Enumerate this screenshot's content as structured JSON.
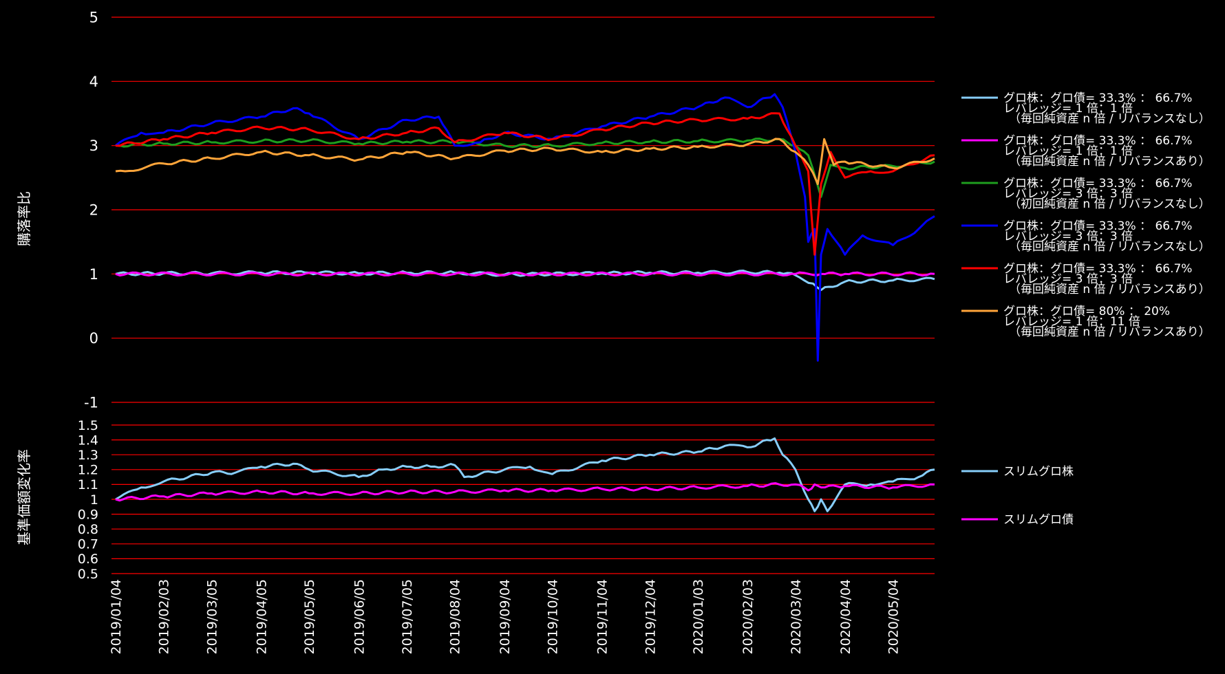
{
  "chart_data": [
    {
      "type": "line",
      "ylabel": "購落率比",
      "ylim": [
        -1,
        5
      ],
      "yticks": [
        5,
        4,
        3,
        2,
        1,
        0,
        -1
      ],
      "grid": "horizontal",
      "grid_color": "#ff0000",
      "legend_position": "right",
      "series": [
        {
          "legend": [
            "グロ株：グロ債= 33.3% ： 66.7%",
            "レバレッジ= 1 倍：1 倍",
            "（毎回純資産 n 倍 / リバランスなし）"
          ],
          "color": "#87cefa",
          "x": [
            "2019/01/04",
            "2019/02/03",
            "2019/03/05",
            "2019/04/05",
            "2019/05/05",
            "2019/06/05",
            "2019/07/05",
            "2019/08/04",
            "2019/09/04",
            "2019/10/04",
            "2019/11/04",
            "2019/12/04",
            "2020/01/03",
            "2020/02/03",
            "2020/02/23",
            "2020/03/04",
            "2020/03/15",
            "2020/03/20",
            "2020/04/04",
            "2020/05/04",
            "2020/05/30"
          ],
          "values": [
            1.0,
            1.01,
            1.01,
            1.02,
            1.02,
            1.01,
            1.02,
            1.02,
            0.99,
            1.0,
            1.01,
            1.02,
            1.02,
            1.03,
            1.02,
            0.98,
            0.85,
            0.75,
            0.88,
            0.9,
            0.92
          ]
        },
        {
          "legend": [
            "グロ株：グロ債= 33.3% ： 66.7%",
            "レバレッジ= 1 倍：1 倍",
            "（毎回純資産 n 倍 / リバランスあり）"
          ],
          "color": "#ff00ff",
          "x": [
            "2019/01/04",
            "2019/08/04",
            "2020/03/04",
            "2020/03/20",
            "2020/04/04",
            "2020/05/30"
          ],
          "values": [
            1.0,
            1.0,
            1.0,
            1.0,
            1.0,
            1.0
          ]
        },
        {
          "legend": [
            "グロ株：グロ債= 33.3% ： 66.7%",
            "レバレッジ= 3 倍：3 倍",
            "（初回純資産 n 倍 / リバランスなし）"
          ],
          "color": "#1e9e1e",
          "x": [
            "2019/01/04",
            "2019/02/03",
            "2019/03/05",
            "2019/04/05",
            "2019/05/05",
            "2019/06/05",
            "2019/07/05",
            "2019/08/04",
            "2019/09/04",
            "2019/10/04",
            "2019/11/04",
            "2019/12/04",
            "2020/01/03",
            "2020/02/03",
            "2020/02/23",
            "2020/03/04",
            "2020/03/12",
            "2020/03/20",
            "2020/03/26",
            "2020/04/04",
            "2020/05/04",
            "2020/05/30"
          ],
          "values": [
            3.0,
            3.03,
            3.05,
            3.07,
            3.08,
            3.03,
            3.06,
            3.06,
            3.0,
            3.0,
            3.04,
            3.06,
            3.07,
            3.08,
            3.1,
            3.0,
            2.85,
            2.2,
            2.7,
            2.65,
            2.68,
            2.75
          ]
        },
        {
          "legend": [
            "グロ株：グロ債= 33.3% ： 66.7%",
            "レバレッジ= 3 倍：3 倍",
            "（毎回純資産 n 倍 / リバランスなし）"
          ],
          "color": "#0000ff",
          "x": [
            "2019/01/04",
            "2019/01/20",
            "2019/02/03",
            "2019/03/05",
            "2019/04/05",
            "2019/04/25",
            "2019/05/05",
            "2019/06/05",
            "2019/07/05",
            "2019/07/25",
            "2019/08/04",
            "2019/08/20",
            "2019/09/04",
            "2019/10/04",
            "2019/11/04",
            "2019/12/04",
            "2020/01/03",
            "2020/01/20",
            "2020/02/03",
            "2020/02/20",
            "2020/02/25",
            "2020/03/04",
            "2020/03/10",
            "2020/03/12",
            "2020/03/16",
            "2020/03/18",
            "2020/03/20",
            "2020/03/24",
            "2020/04/04",
            "2020/04/15",
            "2020/05/04",
            "2020/05/20",
            "2020/05/30"
          ],
          "values": [
            3.0,
            3.2,
            3.2,
            3.35,
            3.45,
            3.58,
            3.5,
            3.1,
            3.4,
            3.45,
            3.0,
            3.05,
            3.2,
            3.1,
            3.3,
            3.45,
            3.6,
            3.75,
            3.6,
            3.8,
            3.6,
            2.9,
            2.2,
            1.5,
            1.7,
            -0.35,
            1.3,
            1.7,
            1.3,
            1.6,
            1.45,
            1.7,
            1.9
          ]
        },
        {
          "legend": [
            "グロ株：グロ債= 33.3% ： 66.7%",
            "レバレッジ= 3 倍：3 倍",
            "（毎回純資産 n 倍 / リバランスあり）"
          ],
          "color": "#ff0000",
          "x": [
            "2019/01/04",
            "2019/02/03",
            "2019/03/05",
            "2019/04/05",
            "2019/05/05",
            "2019/06/05",
            "2019/07/05",
            "2019/07/25",
            "2019/08/04",
            "2019/09/04",
            "2019/10/04",
            "2019/11/04",
            "2019/12/04",
            "2020/01/03",
            "2020/02/03",
            "2020/02/23",
            "2020/03/04",
            "2020/03/12",
            "2020/03/16",
            "2020/03/20",
            "2020/03/26",
            "2020/04/04",
            "2020/04/20",
            "2020/05/04",
            "2020/05/30"
          ],
          "values": [
            3.0,
            3.1,
            3.2,
            3.28,
            3.25,
            3.1,
            3.2,
            3.27,
            3.05,
            3.2,
            3.1,
            3.25,
            3.35,
            3.4,
            3.42,
            3.5,
            3.0,
            2.6,
            1.3,
            2.4,
            2.9,
            2.5,
            2.6,
            2.6,
            2.85
          ]
        },
        {
          "legend": [
            "グロ株：グロ債= 80% ： 20%",
            "レバレッジ= 1 倍：11 倍",
            "（毎回純資産 n 倍 / リバランスあり）"
          ],
          "color": "#ffa53a",
          "x": [
            "2019/01/04",
            "2019/01/10",
            "2019/02/03",
            "2019/03/05",
            "2019/04/05",
            "2019/05/05",
            "2019/06/05",
            "2019/07/05",
            "2019/08/04",
            "2019/09/04",
            "2019/10/04",
            "2019/11/04",
            "2019/12/04",
            "2020/01/03",
            "2020/02/03",
            "2020/02/23",
            "2020/03/04",
            "2020/03/12",
            "2020/03/18",
            "2020/03/22",
            "2020/03/28",
            "2020/04/04",
            "2020/05/04",
            "2020/05/30"
          ],
          "values": [
            2.6,
            2.6,
            2.72,
            2.8,
            2.9,
            2.85,
            2.78,
            2.9,
            2.8,
            2.92,
            2.95,
            2.9,
            2.95,
            2.98,
            3.02,
            3.1,
            2.9,
            2.7,
            2.4,
            3.1,
            2.7,
            2.75,
            2.65,
            2.8
          ]
        }
      ]
    },
    {
      "type": "line",
      "ylabel": "基準価額変化率",
      "ylim": [
        0.5,
        1.5
      ],
      "yticks": [
        "1.5",
        "1.4",
        "1.3",
        "1.2",
        "1.1",
        "1",
        "0.9",
        "0.8",
        "0.7",
        "0.6",
        "0.5"
      ],
      "grid": "horizontal",
      "grid_color": "#ff0000",
      "legend_position": "right",
      "xticks": [
        "2019/01/04",
        "2019/02/03",
        "2019/03/05",
        "2019/04/05",
        "2019/05/05",
        "2019/06/05",
        "2019/07/05",
        "2019/08/04",
        "2019/09/04",
        "2019/10/04",
        "2019/11/04",
        "2019/12/04",
        "2020/01/03",
        "2020/02/03",
        "2020/03/04",
        "2020/04/04",
        "2020/05/04"
      ],
      "series": [
        {
          "legend": [
            "スリムグロ株"
          ],
          "color": "#87cefa",
          "x": [
            "2019/01/04",
            "2019/01/20",
            "2019/02/03",
            "2019/03/05",
            "2019/03/20",
            "2019/04/05",
            "2019/04/25",
            "2019/05/05",
            "2019/06/05",
            "2019/06/20",
            "2019/07/05",
            "2019/07/20",
            "2019/08/04",
            "2019/08/10",
            "2019/09/04",
            "2019/09/20",
            "2019/10/04",
            "2019/11/04",
            "2019/12/04",
            "2020/01/03",
            "2020/01/20",
            "2020/02/03",
            "2020/02/20",
            "2020/02/25",
            "2020/03/04",
            "2020/03/12",
            "2020/03/16",
            "2020/03/20",
            "2020/03/24",
            "2020/04/04",
            "2020/04/20",
            "2020/05/04",
            "2020/05/20",
            "2020/05/30"
          ],
          "values": [
            1.0,
            1.08,
            1.12,
            1.18,
            1.18,
            1.22,
            1.24,
            1.2,
            1.15,
            1.2,
            1.22,
            1.22,
            1.23,
            1.15,
            1.2,
            1.22,
            1.17,
            1.26,
            1.3,
            1.32,
            1.36,
            1.35,
            1.41,
            1.3,
            1.2,
            1.0,
            0.92,
            1.0,
            0.92,
            1.1,
            1.1,
            1.12,
            1.15,
            1.2
          ]
        },
        {
          "legend": [
            "スリムグロ債"
          ],
          "color": "#ff00ff",
          "x": [
            "2019/01/04",
            "2019/02/03",
            "2019/03/05",
            "2019/04/05",
            "2019/05/05",
            "2019/06/05",
            "2019/07/05",
            "2019/08/04",
            "2019/09/04",
            "2019/10/04",
            "2019/11/04",
            "2019/12/04",
            "2020/01/03",
            "2020/02/03",
            "2020/02/23",
            "2020/03/04",
            "2020/03/12",
            "2020/03/16",
            "2020/03/20",
            "2020/04/04",
            "2020/05/04",
            "2020/05/30"
          ],
          "values": [
            1.0,
            1.02,
            1.04,
            1.05,
            1.04,
            1.04,
            1.05,
            1.05,
            1.06,
            1.06,
            1.07,
            1.07,
            1.08,
            1.09,
            1.1,
            1.1,
            1.06,
            1.1,
            1.08,
            1.09,
            1.08,
            1.1
          ]
        }
      ]
    }
  ]
}
